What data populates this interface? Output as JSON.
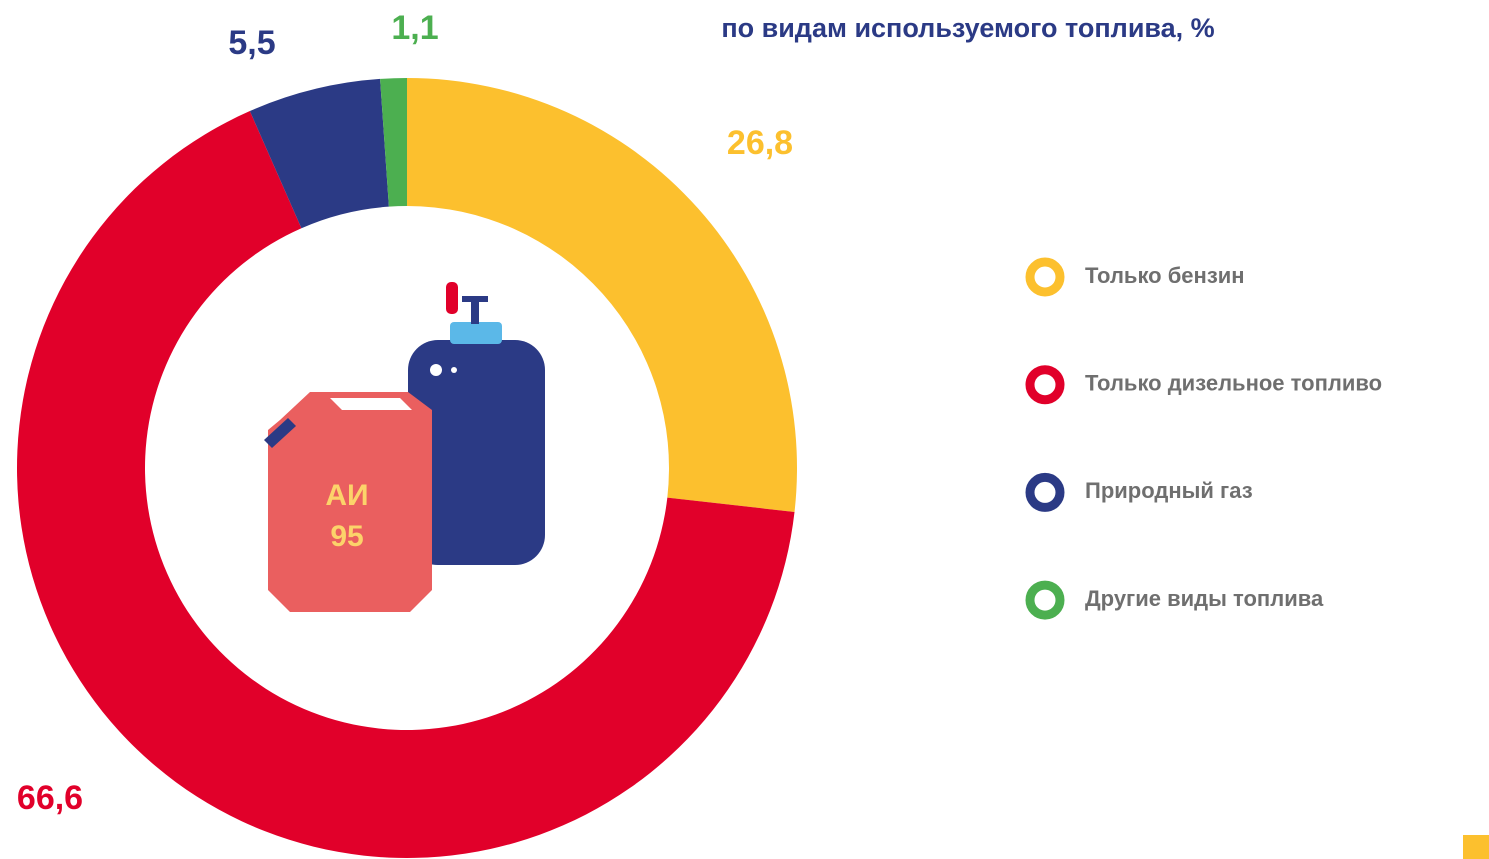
{
  "chart_data": {
    "type": "pie",
    "title": "по видам используемого топлива, %",
    "categories": [
      "Только бензин",
      "Только дизельное топливо",
      "Природный газ",
      "Другие виды топлива"
    ],
    "values": [
      26.8,
      66.6,
      5.5,
      1.1
    ],
    "value_labels": [
      "26,8",
      "66,6",
      "5,5",
      "1,1"
    ],
    "colors": [
      "#fcc02e",
      "#e1002a",
      "#2b3a85",
      "#4caf50"
    ],
    "icon_text": [
      "АИ",
      "95"
    ]
  }
}
